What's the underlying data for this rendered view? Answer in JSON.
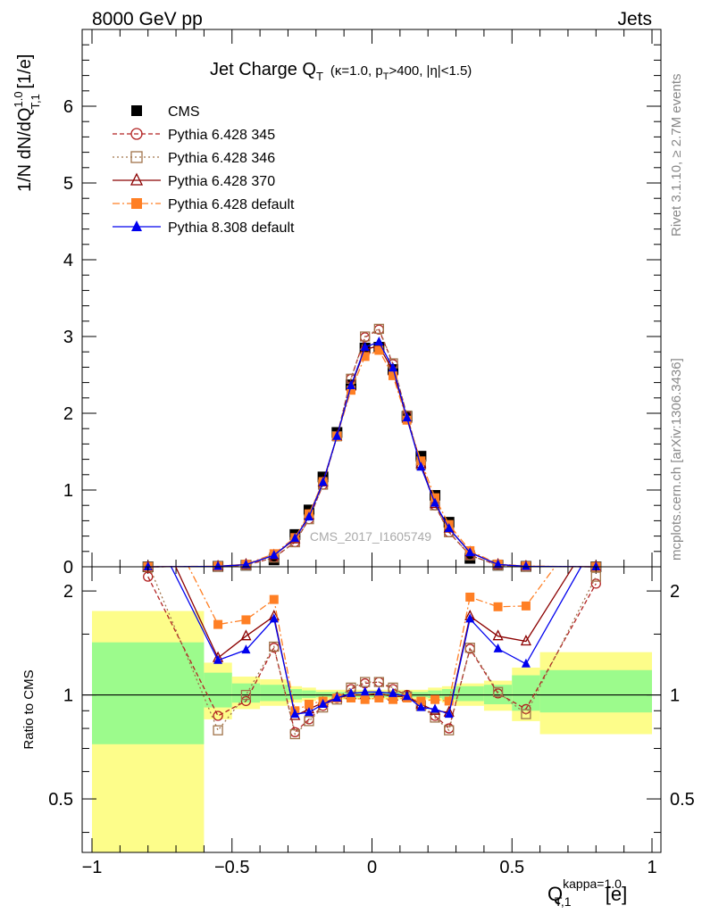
{
  "header": {
    "left": "8000 GeV pp",
    "right": "Jets"
  },
  "side_labels": {
    "top": "Rivet 3.1.10, ≥ 2.7M events",
    "bottom": "mcplots.cern.ch [arXiv:1306.3436]"
  },
  "watermark": "CMS_2017_I1605749",
  "colors": {
    "cms": "#000000",
    "p345": "#b22222",
    "p346": "#a0734a",
    "p370": "#8b0000",
    "p6def": "#ff7f24",
    "p8def": "#0000ee",
    "band_green": "#9cfb8c",
    "band_yellow": "#fdfd8a"
  },
  "chart_data": [
    {
      "type": "line",
      "panel": "main",
      "title_main": "Jet Charge Q",
      "title_sub": "T",
      "title_cond": "(κ=1.0, p",
      "title_cond_sub": "T",
      "title_cond_rest": ">400, |η|<1.5)",
      "ylabel": "1/N dN/dQ",
      "ylabel_sup": "1.0",
      "ylabel_sub": "T,1",
      "ylabel_unit": " [1/e]",
      "xlim": [
        -1,
        1
      ],
      "ylim": [
        0,
        7
      ],
      "yticks": [
        "0",
        "1",
        "2",
        "3",
        "4",
        "5",
        "6"
      ],
      "legend_position": "top-left",
      "x": [
        -0.8,
        -0.55,
        -0.45,
        -0.35,
        -0.275,
        -0.225,
        -0.175,
        -0.125,
        -0.075,
        -0.025,
        0.025,
        0.075,
        0.125,
        0.175,
        0.225,
        0.275,
        0.35,
        0.45,
        0.55,
        0.8
      ],
      "series": [
        {
          "name": "CMS",
          "key": "cms",
          "values": [
            0.0,
            0.005,
            0.02,
            0.09,
            0.42,
            0.74,
            1.17,
            1.75,
            2.37,
            2.85,
            2.86,
            2.57,
            1.96,
            1.44,
            0.93,
            0.58,
            0.11,
            0.02,
            0.005,
            0.0
          ]
        },
        {
          "name": "Pythia 6.428 345",
          "key": "p345",
          "values": [
            0.0,
            0.004,
            0.02,
            0.12,
            0.32,
            0.62,
            1.07,
            1.7,
            2.45,
            2.99,
            3.09,
            2.64,
            1.97,
            1.33,
            0.8,
            0.45,
            0.15,
            0.02,
            0.004,
            0.0
          ]
        },
        {
          "name": "Pythia 6.428 346",
          "key": "p346",
          "values": [
            0.0,
            0.004,
            0.02,
            0.12,
            0.32,
            0.62,
            1.07,
            1.7,
            2.45,
            3.0,
            3.1,
            2.65,
            1.97,
            1.33,
            0.8,
            0.45,
            0.15,
            0.02,
            0.004,
            0.0
          ]
        },
        {
          "name": "Pythia 6.428 370",
          "key": "p370",
          "values": [
            0.0,
            0.006,
            0.03,
            0.15,
            0.36,
            0.67,
            1.1,
            1.7,
            2.35,
            2.83,
            2.88,
            2.55,
            1.93,
            1.34,
            0.82,
            0.5,
            0.19,
            0.03,
            0.007,
            0.0
          ]
        },
        {
          "name": "Pythia 6.428 default",
          "key": "p6def",
          "values": [
            0.0,
            0.008,
            0.033,
            0.17,
            0.38,
            0.69,
            1.11,
            1.7,
            2.3,
            2.74,
            2.82,
            2.49,
            1.91,
            1.38,
            0.9,
            0.55,
            0.21,
            0.036,
            0.009,
            0.0
          ]
        },
        {
          "name": "Pythia 8.308 default",
          "key": "p8def",
          "values": [
            0.0,
            0.006,
            0.028,
            0.15,
            0.37,
            0.65,
            1.1,
            1.7,
            2.36,
            2.86,
            2.93,
            2.59,
            1.94,
            1.3,
            0.83,
            0.5,
            0.185,
            0.03,
            0.006,
            0.0
          ]
        }
      ]
    },
    {
      "type": "line",
      "panel": "ratio",
      "ylabel": "Ratio to CMS",
      "xlabel": "Q",
      "xlabel_sup": "kappa=1.0",
      "xlabel_sub": "T,1",
      "xlabel_unit": " [e]",
      "xlim": [
        -1,
        1
      ],
      "ylim": [
        0.35,
        2.35
      ],
      "yticks": [
        "0.5",
        "1",
        "2"
      ],
      "xticks": [
        "−1",
        "−0.5",
        "0",
        "0.5",
        "1"
      ],
      "x": [
        -0.8,
        -0.55,
        -0.45,
        -0.35,
        -0.275,
        -0.225,
        -0.175,
        -0.125,
        -0.075,
        -0.025,
        0.025,
        0.075,
        0.125,
        0.175,
        0.225,
        0.275,
        0.35,
        0.45,
        0.55,
        0.8
      ],
      "series": [
        {
          "name": "Pythia 6.428 345",
          "key": "p345",
          "values": [
            2.2,
            0.87,
            0.96,
            1.37,
            0.78,
            0.85,
            0.93,
            0.98,
            1.04,
            1.08,
            1.09,
            1.04,
            1.0,
            0.93,
            0.87,
            0.8,
            1.36,
            1.01,
            0.91,
            2.1
          ]
        },
        {
          "name": "Pythia 6.428 346",
          "key": "p346",
          "values": [
            2.4,
            0.79,
            1.0,
            1.38,
            0.77,
            0.84,
            0.92,
            0.97,
            1.05,
            1.09,
            1.09,
            1.05,
            0.99,
            0.93,
            0.86,
            0.79,
            1.37,
            1.02,
            0.88,
            2.2
          ]
        },
        {
          "name": "Pythia 6.428 370",
          "key": "p370",
          "values": [
            3.5,
            1.28,
            1.48,
            1.69,
            0.87,
            0.91,
            0.95,
            0.98,
            1.0,
            1.0,
            1.01,
            0.99,
            0.99,
            0.94,
            0.9,
            0.89,
            1.69,
            1.48,
            1.43,
            3.0
          ]
        },
        {
          "name": "Pythia 6.428 default",
          "key": "p6def",
          "values": [
            4.0,
            1.6,
            1.65,
            1.89,
            0.9,
            0.94,
            0.96,
            0.98,
            0.98,
            0.97,
            0.98,
            0.97,
            0.98,
            0.96,
            0.97,
            0.96,
            1.92,
            1.8,
            1.81,
            3.4
          ]
        },
        {
          "name": "Pythia 8.308 default",
          "key": "p8def",
          "values": [
            3.2,
            1.26,
            1.35,
            1.66,
            0.88,
            0.89,
            0.94,
            0.98,
            1.01,
            1.02,
            1.02,
            1.01,
            0.99,
            0.92,
            0.91,
            0.88,
            1.66,
            1.36,
            1.23,
            2.8
          ]
        }
      ],
      "bands": [
        {
          "x0": -1.0,
          "x1": -0.6,
          "green": [
            0.72,
            1.42
          ],
          "yellow": [
            0.35,
            1.75
          ]
        },
        {
          "x0": -0.6,
          "x1": -0.5,
          "green": [
            0.92,
            1.16
          ],
          "yellow": [
            0.85,
            1.24
          ]
        },
        {
          "x0": -0.5,
          "x1": -0.4,
          "green": [
            0.95,
            1.08
          ],
          "yellow": [
            0.91,
            1.13
          ]
        },
        {
          "x0": -0.4,
          "x1": -0.3,
          "green": [
            0.96,
            1.07
          ],
          "yellow": [
            0.93,
            1.11
          ]
        },
        {
          "x0": -0.3,
          "x1": -0.25,
          "green": [
            0.97,
            1.04
          ],
          "yellow": [
            0.95,
            1.06
          ]
        },
        {
          "x0": -0.25,
          "x1": -0.2,
          "green": [
            0.98,
            1.03
          ],
          "yellow": [
            0.96,
            1.05
          ]
        },
        {
          "x0": -0.2,
          "x1": 0.2,
          "green": [
            0.985,
            1.02
          ],
          "yellow": [
            0.97,
            1.035
          ]
        },
        {
          "x0": 0.2,
          "x1": 0.25,
          "green": [
            0.98,
            1.03
          ],
          "yellow": [
            0.96,
            1.05
          ]
        },
        {
          "x0": 0.25,
          "x1": 0.3,
          "green": [
            0.97,
            1.04
          ],
          "yellow": [
            0.95,
            1.06
          ]
        },
        {
          "x0": 0.3,
          "x1": 0.4,
          "green": [
            0.96,
            1.06
          ],
          "yellow": [
            0.93,
            1.08
          ]
        },
        {
          "x0": 0.4,
          "x1": 0.5,
          "green": [
            0.94,
            1.07
          ],
          "yellow": [
            0.9,
            1.1
          ]
        },
        {
          "x0": 0.5,
          "x1": 0.6,
          "green": [
            0.9,
            1.14
          ],
          "yellow": [
            0.84,
            1.2
          ]
        },
        {
          "x0": 0.6,
          "x1": 1.0,
          "green": [
            0.89,
            1.18
          ],
          "yellow": [
            0.77,
            1.33
          ]
        }
      ]
    }
  ]
}
